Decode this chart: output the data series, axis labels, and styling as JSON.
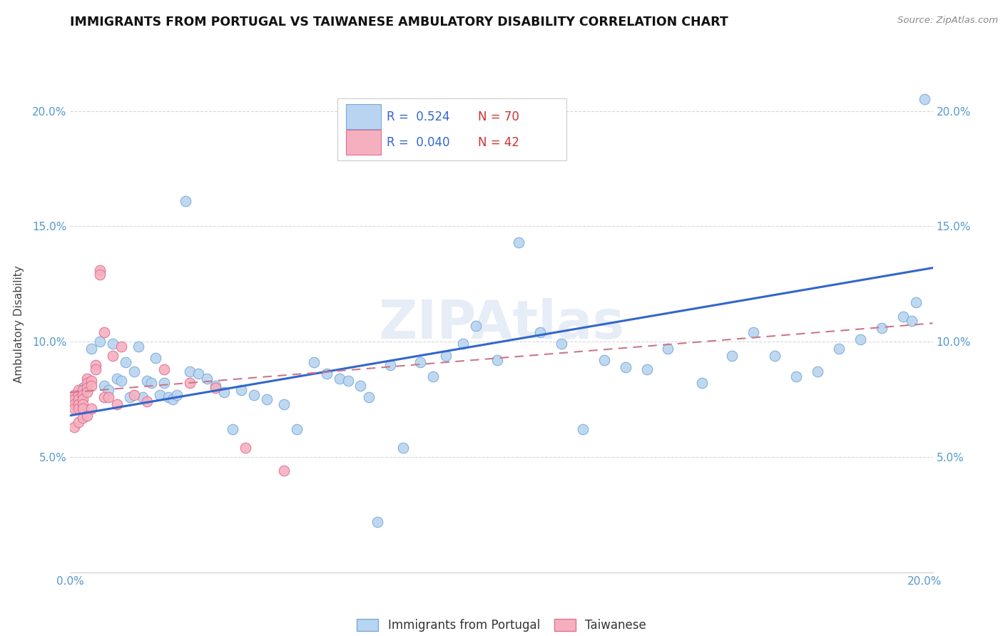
{
  "title": "IMMIGRANTS FROM PORTUGAL VS TAIWANESE AMBULATORY DISABILITY CORRELATION CHART",
  "source": "Source: ZipAtlas.com",
  "ylabel": "Ambulatory Disability",
  "xlim": [
    0,
    0.202
  ],
  "ylim": [
    0,
    0.215
  ],
  "yticks": [
    0.05,
    0.1,
    0.15,
    0.2
  ],
  "ytick_labels": [
    "5.0%",
    "10.0%",
    "15.0%",
    "20.0%"
  ],
  "watermark": "ZIPAtlas",
  "blue_color": "#b8d4f0",
  "blue_edge": "#7aaad8",
  "pink_color": "#f5b0c0",
  "pink_edge": "#e07090",
  "blue_line_color": "#3366cc",
  "pink_line_color": "#cc7788",
  "grid_color": "#d8d8d8",
  "tick_color": "#5599cc",
  "background_color": "#ffffff",
  "blue_scatter_x": [
    0.001,
    0.003,
    0.005,
    0.007,
    0.008,
    0.009,
    0.01,
    0.011,
    0.012,
    0.013,
    0.014,
    0.015,
    0.016,
    0.017,
    0.018,
    0.019,
    0.02,
    0.021,
    0.022,
    0.023,
    0.024,
    0.025,
    0.027,
    0.028,
    0.03,
    0.032,
    0.034,
    0.036,
    0.038,
    0.04,
    0.043,
    0.046,
    0.05,
    0.053,
    0.057,
    0.06,
    0.063,
    0.065,
    0.068,
    0.07,
    0.072,
    0.075,
    0.078,
    0.082,
    0.085,
    0.088,
    0.092,
    0.095,
    0.1,
    0.105,
    0.11,
    0.115,
    0.12,
    0.125,
    0.13,
    0.135,
    0.14,
    0.148,
    0.155,
    0.16,
    0.165,
    0.17,
    0.175,
    0.18,
    0.185,
    0.19,
    0.195,
    0.197,
    0.198,
    0.2
  ],
  "blue_scatter_y": [
    0.076,
    0.08,
    0.097,
    0.1,
    0.081,
    0.079,
    0.099,
    0.084,
    0.083,
    0.091,
    0.076,
    0.087,
    0.098,
    0.076,
    0.083,
    0.082,
    0.093,
    0.077,
    0.082,
    0.076,
    0.075,
    0.077,
    0.161,
    0.087,
    0.086,
    0.084,
    0.081,
    0.078,
    0.062,
    0.079,
    0.077,
    0.075,
    0.073,
    0.062,
    0.091,
    0.086,
    0.084,
    0.083,
    0.081,
    0.076,
    0.022,
    0.09,
    0.054,
    0.091,
    0.085,
    0.094,
    0.099,
    0.107,
    0.092,
    0.143,
    0.104,
    0.099,
    0.062,
    0.092,
    0.089,
    0.088,
    0.097,
    0.082,
    0.094,
    0.104,
    0.094,
    0.085,
    0.087,
    0.097,
    0.101,
    0.106,
    0.111,
    0.109,
    0.117,
    0.205
  ],
  "pink_scatter_x": [
    0.001,
    0.001,
    0.001,
    0.001,
    0.001,
    0.002,
    0.002,
    0.002,
    0.002,
    0.002,
    0.002,
    0.003,
    0.003,
    0.003,
    0.003,
    0.003,
    0.003,
    0.004,
    0.004,
    0.004,
    0.004,
    0.004,
    0.005,
    0.005,
    0.005,
    0.006,
    0.006,
    0.007,
    0.007,
    0.008,
    0.008,
    0.009,
    0.01,
    0.011,
    0.012,
    0.015,
    0.018,
    0.022,
    0.028,
    0.034,
    0.041,
    0.05
  ],
  "pink_scatter_y": [
    0.077,
    0.075,
    0.073,
    0.071,
    0.063,
    0.079,
    0.077,
    0.075,
    0.073,
    0.071,
    0.065,
    0.079,
    0.077,
    0.075,
    0.073,
    0.071,
    0.067,
    0.084,
    0.082,
    0.08,
    0.078,
    0.068,
    0.083,
    0.081,
    0.071,
    0.09,
    0.088,
    0.131,
    0.129,
    0.104,
    0.076,
    0.076,
    0.094,
    0.073,
    0.098,
    0.077,
    0.074,
    0.088,
    0.082,
    0.08,
    0.054,
    0.044
  ],
  "blue_trendline_x0": 0.0,
  "blue_trendline_y0": 0.068,
  "blue_trendline_x1": 0.202,
  "blue_trendline_y1": 0.132,
  "pink_trendline_x0": 0.0,
  "pink_trendline_y0": 0.078,
  "pink_trendline_x1": 0.202,
  "pink_trendline_y1": 0.108
}
